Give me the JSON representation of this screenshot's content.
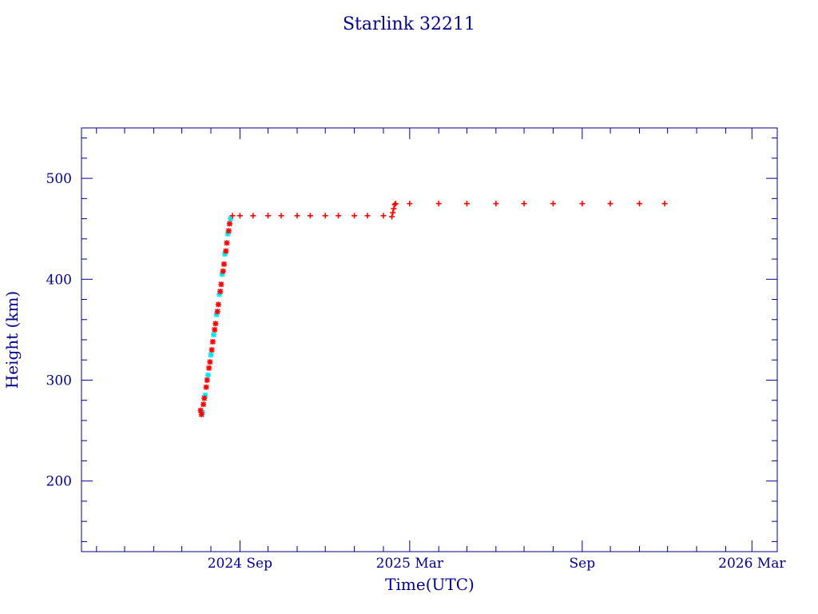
{
  "chart_data": {
    "type": "scatter",
    "title": "Starlink 32211",
    "xlabel": "Time(UTC)",
    "ylabel": "Height (km)",
    "x_axis_type": "date",
    "xlim": [
      "2024-03-16",
      "2026-03-28"
    ],
    "ylim": [
      130,
      550
    ],
    "grid": false,
    "legend": "none",
    "x_tick_labels": [
      {
        "date": "2024-09-01",
        "label": "2024 Sep"
      },
      {
        "date": "2025-03-01",
        "label": "2025 Mar"
      },
      {
        "date": "2025-09-01",
        "label": "Sep"
      },
      {
        "date": "2026-03-01",
        "label": "2026 Mar"
      }
    ],
    "x_minor_ticks": [
      "2024-04-01",
      "2024-05-01",
      "2024-06-01",
      "2024-07-01",
      "2024-08-01",
      "2024-10-01",
      "2024-11-01",
      "2024-12-01",
      "2025-01-01",
      "2025-02-01",
      "2025-04-01",
      "2025-05-01",
      "2025-06-01",
      "2025-07-01",
      "2025-08-01",
      "2025-10-01",
      "2025-11-01",
      "2025-12-01",
      "2026-01-01",
      "2026-02-01"
    ],
    "y_ticks": [
      200,
      300,
      400,
      500
    ],
    "y_minor_step": 20,
    "colors": {
      "axis": "#00008b",
      "primary": "#ff0000",
      "secondary": "#00e5ee"
    },
    "series": [
      {
        "color": "#00e5ee",
        "marker": "star",
        "x": [
          "2024-07-23",
          "2024-07-26",
          "2024-07-29",
          "2024-08-01",
          "2024-08-04",
          "2024-08-07",
          "2024-08-10",
          "2024-08-13",
          "2024-08-16",
          "2024-08-19",
          "2024-08-22"
        ],
        "y": [
          268,
          285,
          305,
          325,
          345,
          365,
          385,
          405,
          425,
          445,
          460
        ]
      },
      {
        "color": "#ff0000",
        "marker": "star",
        "x": [
          "2024-07-21",
          "2024-07-22",
          "2024-07-24",
          "2024-07-25",
          "2024-07-27",
          "2024-07-28",
          "2024-07-30",
          "2024-07-31",
          "2024-08-02",
          "2024-08-03",
          "2024-08-05",
          "2024-08-06",
          "2024-08-08",
          "2024-08-09",
          "2024-08-11",
          "2024-08-12",
          "2024-08-14",
          "2024-08-15",
          "2024-08-17",
          "2024-08-18",
          "2024-08-20",
          "2024-08-21"
        ],
        "y": [
          270,
          266,
          276,
          282,
          293,
          300,
          312,
          318,
          330,
          338,
          350,
          356,
          368,
          375,
          388,
          395,
          408,
          415,
          428,
          436,
          448,
          455
        ]
      },
      {
        "color": "#ff0000",
        "marker": "plus",
        "x": [
          "2024-08-24",
          "2024-09-01",
          "2024-09-15",
          "2024-10-01",
          "2024-10-15",
          "2024-11-01",
          "2024-11-15",
          "2024-12-01",
          "2024-12-15",
          "2025-01-01",
          "2025-01-15",
          "2025-02-01",
          "2025-02-10",
          "2025-02-11",
          "2025-02-12",
          "2025-02-13",
          "2025-02-14",
          "2025-03-01",
          "2025-04-01",
          "2025-05-01",
          "2025-06-01",
          "2025-07-01",
          "2025-08-01",
          "2025-09-01",
          "2025-10-01",
          "2025-11-01",
          "2025-11-28"
        ],
        "y": [
          463,
          463,
          463,
          463,
          463,
          463,
          463,
          463,
          463,
          463,
          463,
          463,
          462,
          466,
          470,
          474,
          475,
          475,
          475,
          475,
          475,
          475,
          475,
          475,
          475,
          475,
          475
        ]
      }
    ]
  }
}
